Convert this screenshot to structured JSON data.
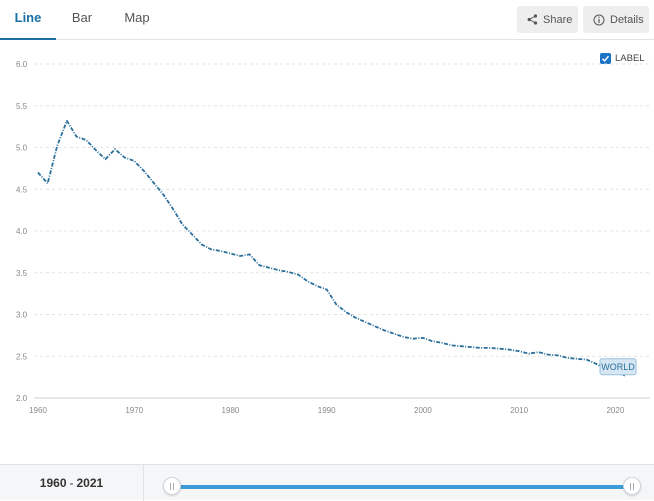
{
  "tabs": [
    {
      "label": "Line",
      "active": true
    },
    {
      "label": "Bar",
      "active": false
    },
    {
      "label": "Map",
      "active": false
    }
  ],
  "toolbar": {
    "share_label": "Share",
    "share_icon": "share-icon",
    "details_label": "Details",
    "details_icon": "info-icon"
  },
  "label_toggle": {
    "label": "LABEL",
    "checked": true
  },
  "colors": {
    "accent": "#1a6fa4",
    "series": "#2b6f9c",
    "slider": "#3d9bd8",
    "checkbox": "#1a73c4"
  },
  "range": {
    "start": "1960",
    "end": "2021",
    "separator": "-"
  },
  "slider": {
    "start_fraction": 0.0,
    "end_fraction": 1.0
  },
  "chart_data": {
    "type": "line",
    "title": "",
    "xlabel": "",
    "ylabel": "",
    "xlim": [
      1960,
      2021
    ],
    "ylim": [
      2.0,
      6.0
    ],
    "x_ticks": [
      "1960",
      "1970",
      "1980",
      "1990",
      "2000",
      "2010",
      "2020"
    ],
    "y_ticks": [
      "6.0",
      "5.5",
      "5.0",
      "4.5",
      "4.0",
      "3.5",
      "3.0",
      "2.5",
      "2.0"
    ],
    "grid": true,
    "series": [
      {
        "name": "WORLD",
        "x": [
          1960,
          1961,
          1962,
          1963,
          1964,
          1965,
          1966,
          1967,
          1968,
          1969,
          1970,
          1971,
          1972,
          1973,
          1974,
          1975,
          1976,
          1977,
          1978,
          1979,
          1980,
          1981,
          1982,
          1983,
          1984,
          1985,
          1986,
          1987,
          1988,
          1989,
          1990,
          1991,
          1992,
          1993,
          1994,
          1995,
          1996,
          1997,
          1998,
          1999,
          2000,
          2001,
          2002,
          2003,
          2004,
          2005,
          2006,
          2007,
          2008,
          2009,
          2010,
          2011,
          2012,
          2013,
          2014,
          2015,
          2016,
          2017,
          2018,
          2019,
          2020,
          2021
        ],
        "y": [
          4.7,
          4.57,
          5.02,
          5.32,
          5.13,
          5.09,
          4.97,
          4.86,
          4.98,
          4.88,
          4.84,
          4.72,
          4.58,
          4.44,
          4.27,
          4.08,
          3.96,
          3.84,
          3.78,
          3.76,
          3.73,
          3.7,
          3.72,
          3.59,
          3.56,
          3.53,
          3.51,
          3.48,
          3.4,
          3.34,
          3.3,
          3.12,
          3.03,
          2.96,
          2.91,
          2.86,
          2.81,
          2.77,
          2.73,
          2.71,
          2.72,
          2.68,
          2.66,
          2.63,
          2.62,
          2.61,
          2.6,
          2.6,
          2.59,
          2.58,
          2.56,
          2.53,
          2.55,
          2.52,
          2.51,
          2.48,
          2.47,
          2.46,
          2.41,
          2.35,
          2.3,
          2.27
        ]
      }
    ]
  }
}
